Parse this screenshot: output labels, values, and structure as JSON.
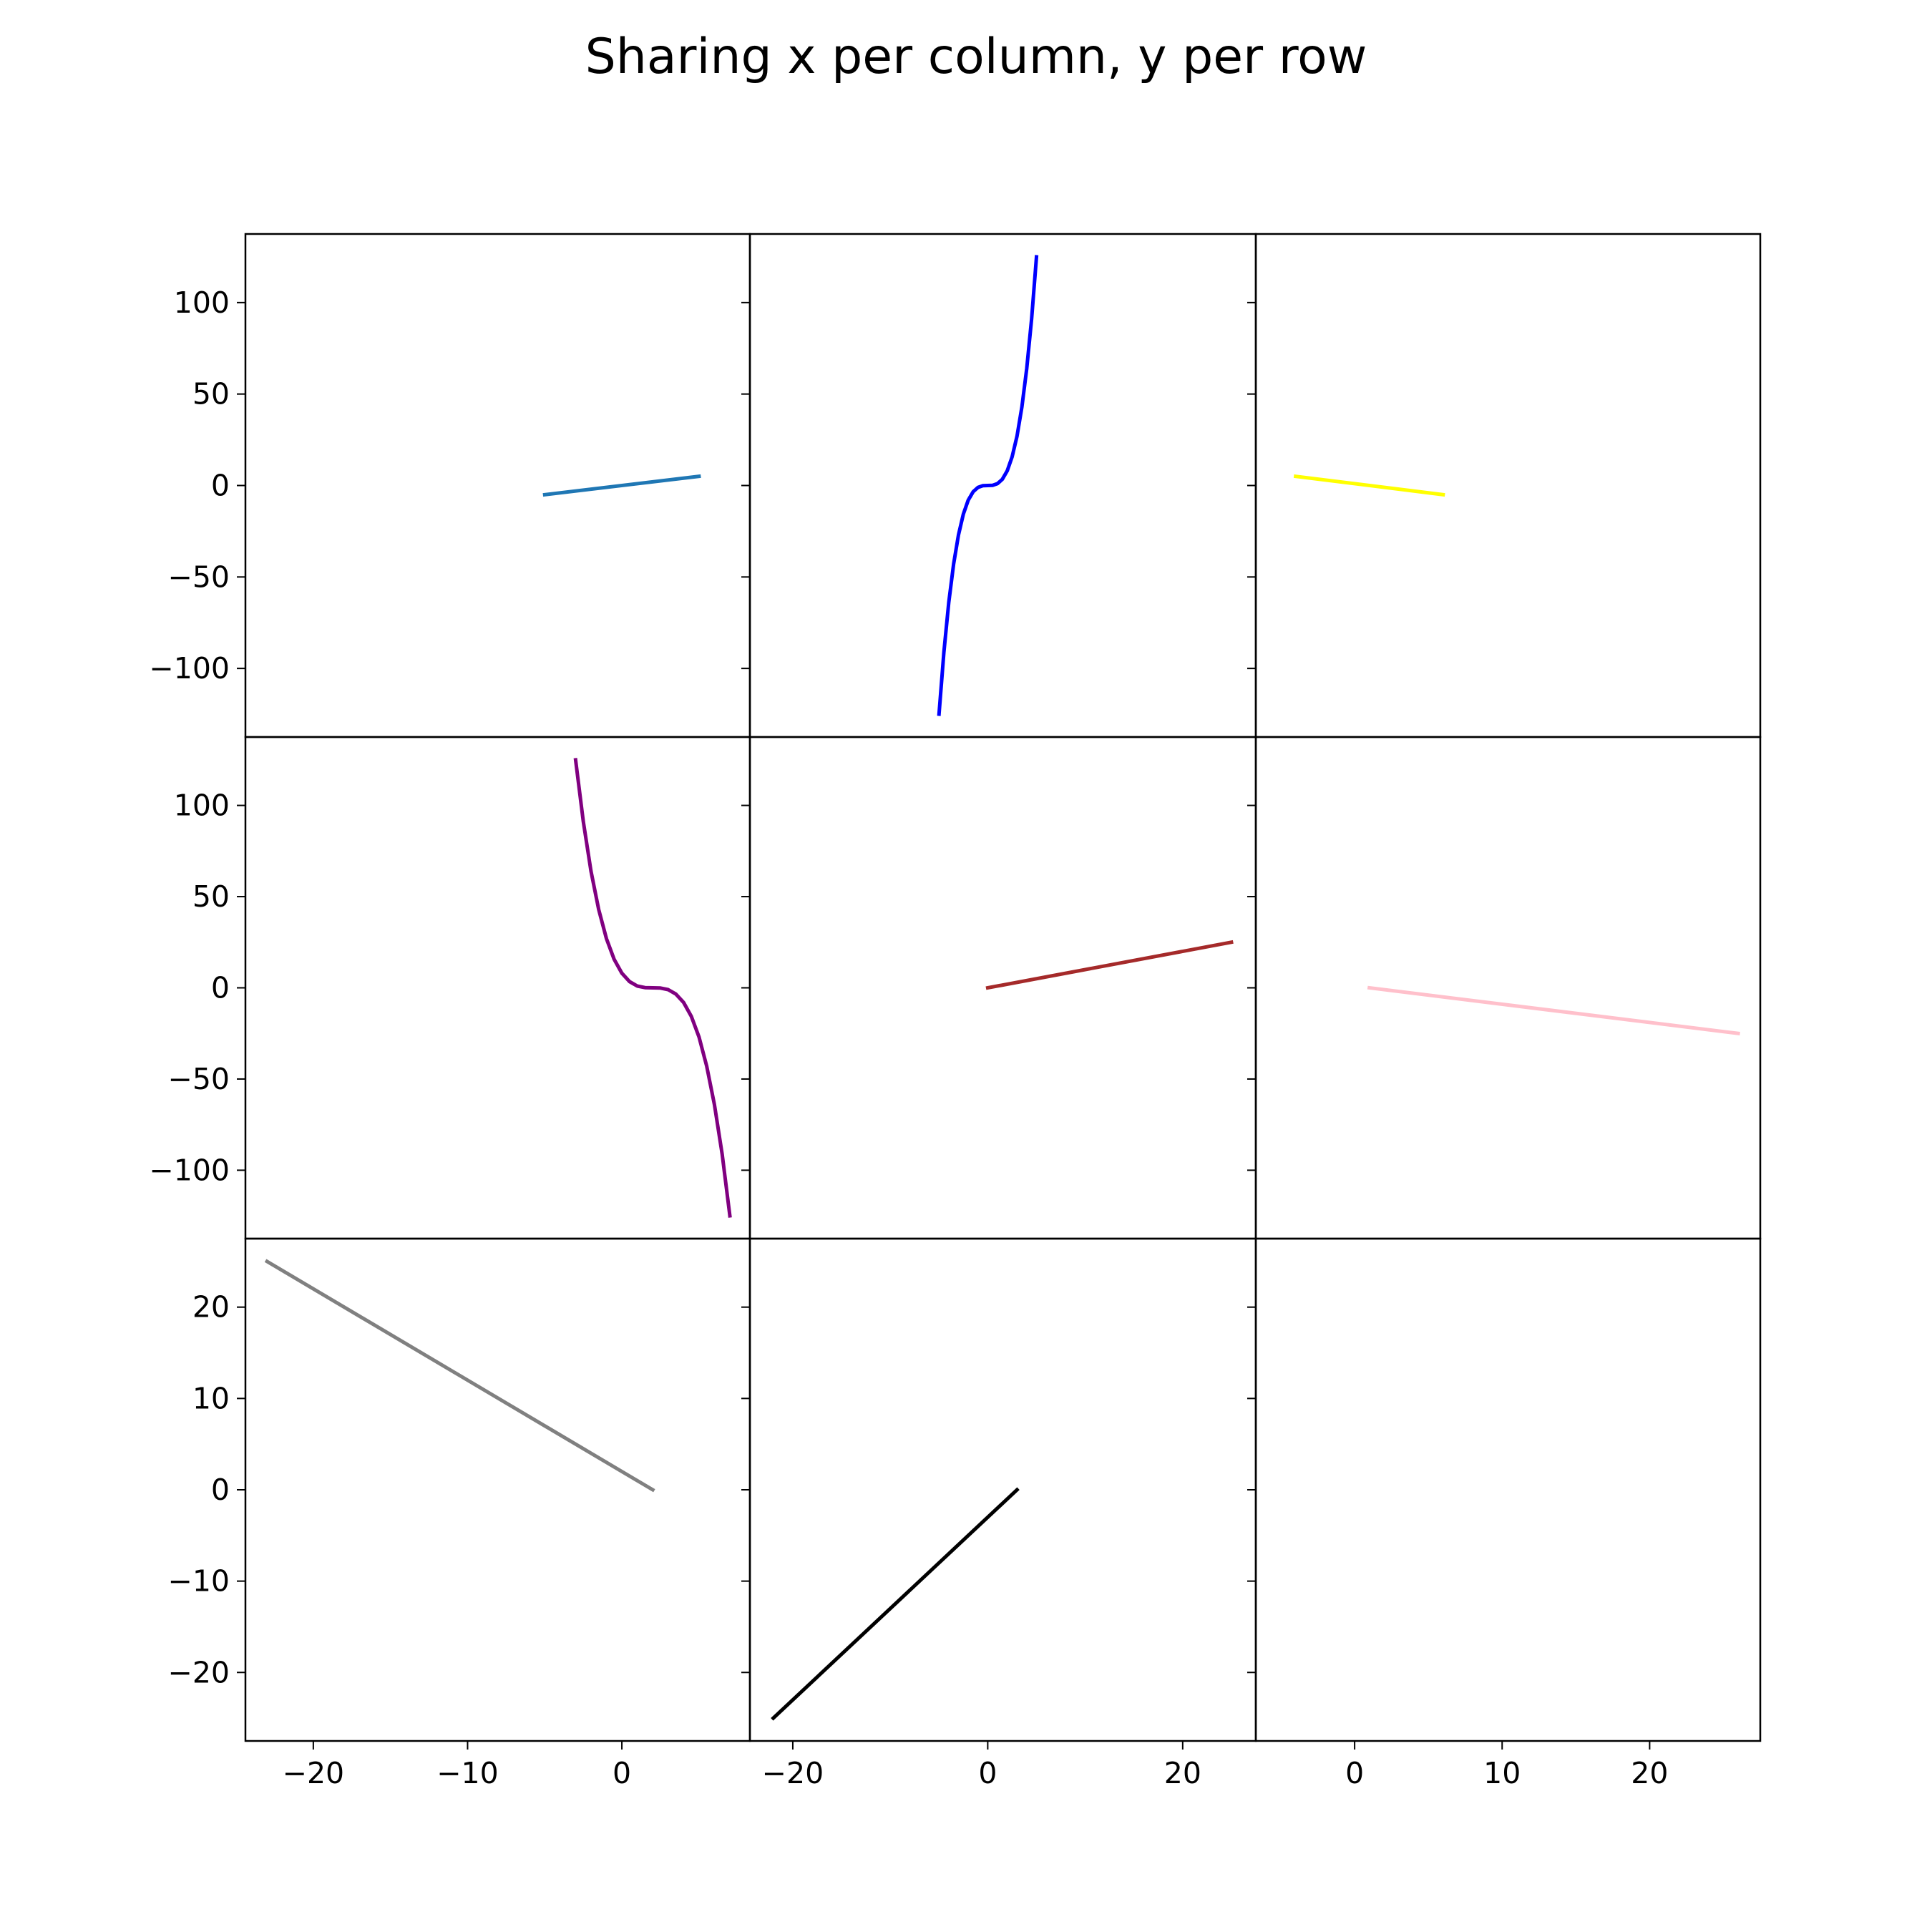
{
  "figure": {
    "suptitle": "Sharing x per column, y per row"
  },
  "chart_data": [
    {
      "type": "line",
      "row": 0,
      "col": 0,
      "color": "#1f77b4",
      "x": [
        -5,
        5
      ],
      "y": [
        -5,
        5
      ],
      "xlim": [
        -24.4,
        8.3
      ],
      "ylim": [
        -137.5,
        137.5
      ]
    },
    {
      "type": "line",
      "row": 0,
      "col": 1,
      "color": "#0000ff",
      "x": [
        -5,
        -4.5,
        -4,
        -3.5,
        -3,
        -2.5,
        -2,
        -1.5,
        -1,
        -0.5,
        0,
        0.5,
        1,
        1.5,
        2,
        2.5,
        3,
        3.5,
        4,
        4.5,
        5
      ],
      "y": [
        -125,
        -91.1,
        -64,
        -42.9,
        -27,
        -15.6,
        -8,
        -3.4,
        -1,
        -0.1,
        0,
        0.1,
        1,
        3.4,
        8,
        15.6,
        27,
        42.9,
        64,
        91.1,
        125
      ],
      "xlim": [
        -24.4,
        27.5
      ],
      "ylim": [
        -137.5,
        137.5
      ]
    },
    {
      "type": "line",
      "row": 0,
      "col": 2,
      "color": "#ffff00",
      "x": [
        -4,
        6
      ],
      "y": [
        5,
        -5
      ],
      "xlim": [
        -6.7,
        27.5
      ],
      "ylim": [
        -137.5,
        137.5
      ]
    },
    {
      "type": "line",
      "row": 1,
      "col": 0,
      "color": "#800080",
      "x": [
        -3,
        -2.5,
        -2,
        -1.5,
        -1,
        -0.5,
        0,
        0.5,
        1,
        1.5,
        2,
        2.5,
        3,
        3.5,
        4,
        4.5,
        5,
        5.5,
        6,
        6.5,
        7
      ],
      "y": [
        125,
        91.1,
        64,
        42.9,
        27,
        15.6,
        8,
        3.4,
        1,
        0.1,
        0,
        -0.1,
        -1,
        -3.4,
        -8,
        -15.6,
        -27,
        -42.9,
        -64,
        -91.1,
        -125
      ],
      "xlim": [
        -24.4,
        8.3
      ],
      "ylim": [
        -137.5,
        137.5
      ]
    },
    {
      "type": "line",
      "row": 1,
      "col": 1,
      "color": "#a52a2a",
      "x": [
        0,
        25
      ],
      "y": [
        0,
        25
      ],
      "xlim": [
        -24.4,
        27.5
      ],
      "ylim": [
        -137.5,
        137.5
      ]
    },
    {
      "type": "line",
      "row": 1,
      "col": 2,
      "color": "#ffc0cb",
      "x": [
        1,
        26
      ],
      "y": [
        0,
        -25
      ],
      "xlim": [
        -6.7,
        27.5
      ],
      "ylim": [
        -137.5,
        137.5
      ]
    },
    {
      "type": "line",
      "row": 2,
      "col": 0,
      "color": "#808080",
      "x": [
        -23,
        2
      ],
      "y": [
        25,
        0
      ],
      "xlim": [
        -24.4,
        8.3
      ],
      "ylim": [
        -27.5,
        27.5
      ]
    },
    {
      "type": "line",
      "row": 2,
      "col": 1,
      "color": "#000000",
      "x": [
        -22,
        3
      ],
      "y": [
        -25,
        0
      ],
      "xlim": [
        -24.4,
        27.5
      ],
      "ylim": [
        -27.5,
        27.5
      ]
    },
    {
      "type": "line",
      "row": 2,
      "col": 2,
      "color": "#000000",
      "x": [],
      "y": [],
      "xlim": [
        -6.7,
        27.5
      ],
      "ylim": [
        -27.5,
        27.5
      ]
    }
  ],
  "axes": {
    "yticks_rows": [
      {
        "values": [
          100,
          50,
          0,
          -50,
          -100
        ],
        "labels": [
          "100",
          "50",
          "0",
          "−50",
          "−100"
        ]
      },
      {
        "values": [
          100,
          50,
          0,
          -50,
          -100
        ],
        "labels": [
          "100",
          "50",
          "0",
          "−50",
          "−100"
        ]
      },
      {
        "values": [
          20,
          10,
          0,
          -10,
          -20
        ],
        "labels": [
          "20",
          "10",
          "0",
          "−10",
          "−20"
        ]
      }
    ],
    "xticks_cols": [
      {
        "values": [
          -20,
          -10,
          0
        ],
        "labels": [
          "−20",
          "−10",
          "0"
        ]
      },
      {
        "values": [
          -20,
          0,
          20
        ],
        "labels": [
          "−20",
          "0",
          "20"
        ]
      },
      {
        "values": [
          0,
          10,
          20
        ],
        "labels": [
          "0",
          "10",
          "20"
        ]
      }
    ]
  }
}
